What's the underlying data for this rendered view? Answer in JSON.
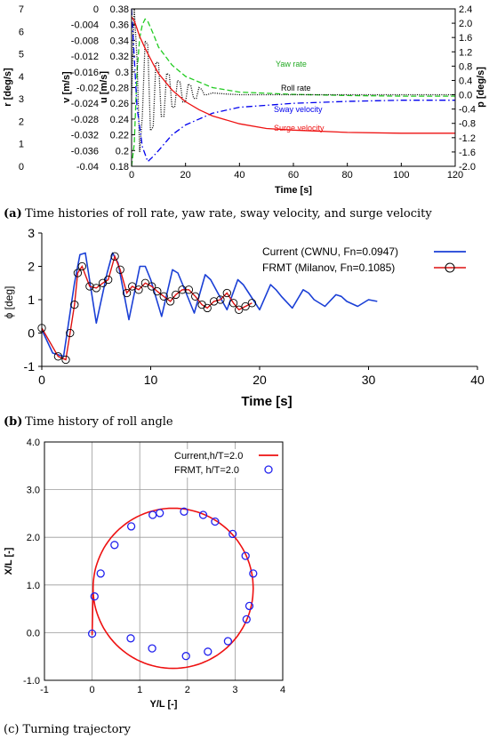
{
  "captions": {
    "a_letter": "(a)",
    "a_text": " Time histories of roll rate, yaw rate, sway velocity, and surge velocity",
    "b_letter": "(b)",
    "b_text": " Time history of roll angle",
    "c_text": "(c) Turning trajectory"
  },
  "colors": {
    "yaw": "#22cc22",
    "roll_rate": "#000000",
    "sway": "#0000ee",
    "surge": "#ee1111",
    "current_b": "#1a3fd6",
    "frmt_b": "#dd1111",
    "current_c": "#ee1111",
    "frmt_c": "#2222ee"
  },
  "chart_data": [
    {
      "type": "line",
      "xlabel": "Time [s]",
      "xlim": [
        0,
        120
      ],
      "xticks": [
        "0",
        "20",
        "40",
        "60",
        "80",
        "100",
        "120"
      ],
      "axes": {
        "r": {
          "label": "r [deg/s]",
          "lim": [
            0,
            7
          ],
          "ticks": [
            "0",
            "1",
            "2",
            "3",
            "4",
            "5",
            "6",
            "7"
          ]
        },
        "v": {
          "label": "v [m/s]",
          "lim": [
            -0.04,
            0
          ],
          "ticks": [
            "-0.04",
            "-0.036",
            "-0.032",
            "-0.028",
            "-0.024",
            "-0.02",
            "-0.016",
            "-0.012",
            "-0.008",
            "-0.004",
            "0"
          ]
        },
        "u": {
          "label": "u [m/s]",
          "lim": [
            0.18,
            0.38
          ],
          "ticks": [
            "0.18",
            "0.2",
            "0.22",
            "0.24",
            "0.26",
            "0.28",
            "0.3",
            "0.32",
            "0.34",
            "0.36",
            "0.38"
          ]
        },
        "p": {
          "label": "p [deg/s]",
          "lim": [
            -2.0,
            2.4
          ],
          "ticks": [
            "-2.0",
            "-1.6",
            "-1.2",
            "-0.8",
            "-0.4",
            "0.0",
            "0.4",
            "0.8",
            "1.2",
            "1.6",
            "2.0",
            "2.4"
          ]
        }
      },
      "series": [
        {
          "name": "Yaw rate",
          "axis": "r",
          "style": "dashed",
          "x": [
            0,
            1,
            2,
            3,
            4,
            5,
            6,
            8,
            10,
            15,
            20,
            30,
            40,
            60,
            80,
            100,
            120
          ],
          "y": [
            0,
            1.0,
            4.2,
            5.7,
            6.3,
            6.55,
            6.45,
            5.9,
            5.3,
            4.5,
            4.0,
            3.5,
            3.3,
            3.2,
            3.15,
            3.12,
            3.12
          ]
        },
        {
          "name": "Roll rate",
          "axis": "p",
          "style": "dotted",
          "x": [
            0,
            1,
            2,
            3,
            4,
            5,
            6,
            7,
            8,
            9,
            10,
            11,
            12,
            13,
            14,
            15,
            16,
            17,
            18,
            19,
            20,
            21,
            22,
            23,
            24,
            25,
            26,
            27,
            28,
            30,
            35,
            40,
            60,
            80,
            100,
            120
          ],
          "y": [
            0,
            2.4,
            1.0,
            -1.6,
            -0.6,
            1.5,
            1.4,
            -1.0,
            -0.9,
            0.9,
            0.9,
            -0.6,
            -0.6,
            0.6,
            0.55,
            -0.35,
            -0.35,
            0.4,
            0.35,
            -0.2,
            -0.2,
            0.3,
            0.25,
            -0.1,
            -0.1,
            0.2,
            0.15,
            0.0,
            0.0,
            0.05,
            0.02,
            0.0,
            0.0,
            0.0,
            0.0,
            0.0
          ]
        },
        {
          "name": "Sway velocity",
          "axis": "v",
          "style": "dashdot",
          "x": [
            0,
            2,
            4,
            6,
            8,
            10,
            15,
            20,
            30,
            40,
            60,
            80,
            100,
            120
          ],
          "y": [
            0,
            -0.025,
            -0.035,
            -0.0388,
            -0.0375,
            -0.036,
            -0.032,
            -0.0295,
            -0.0265,
            -0.025,
            -0.024,
            -0.0235,
            -0.0232,
            -0.0232
          ]
        },
        {
          "name": "Surge velocity",
          "axis": "u",
          "style": "solid",
          "x": [
            0,
            1,
            2,
            3,
            5,
            8,
            10,
            15,
            20,
            25,
            30,
            40,
            50,
            60,
            80,
            100,
            120
          ],
          "y": [
            0.37,
            0.365,
            0.355,
            0.345,
            0.33,
            0.31,
            0.298,
            0.277,
            0.262,
            0.252,
            0.244,
            0.234,
            0.228,
            0.226,
            0.223,
            0.222,
            0.222
          ]
        }
      ],
      "annotations": [
        "Yaw rate",
        "Roll rate",
        "Sway velocity",
        "Surge velocity"
      ]
    },
    {
      "type": "line",
      "xlabel": "Time [s]",
      "ylabel": "ϕ [deg]",
      "xlim": [
        0,
        40
      ],
      "ylim": [
        -1,
        3
      ],
      "xticks": [
        "0",
        "10",
        "20",
        "30",
        "40"
      ],
      "yticks": [
        "-1",
        "0",
        "1",
        "2",
        "3"
      ],
      "legend": "top-right",
      "series": [
        {
          "name": "Current (CWNU, Fn=0.0947)",
          "style": "solid",
          "x": [
            0,
            1,
            2,
            3,
            3.5,
            4,
            5,
            6,
            6.5,
            7,
            8,
            9,
            9.5,
            10,
            11,
            12,
            12.5,
            13,
            14,
            15,
            15.5,
            16,
            17,
            18,
            18.5,
            19,
            20,
            21,
            21.5,
            22,
            23,
            24,
            24.5,
            25,
            26,
            27,
            27.5,
            28,
            29,
            30,
            30.8
          ],
          "y": [
            0.1,
            -0.6,
            -0.7,
            1.5,
            2.35,
            2.4,
            0.3,
            1.8,
            2.4,
            2.1,
            0.4,
            2.0,
            2.0,
            1.6,
            0.5,
            1.9,
            1.8,
            1.4,
            0.6,
            1.75,
            1.6,
            1.3,
            0.7,
            1.6,
            1.45,
            1.2,
            0.7,
            1.45,
            1.3,
            1.1,
            0.75,
            1.3,
            1.2,
            1.0,
            0.8,
            1.15,
            1.1,
            0.95,
            0.8,
            1.0,
            0.95
          ]
        },
        {
          "name": "FRMT (Milanov, Fn=0.1085)",
          "style": "markers",
          "x": [
            0,
            1.5,
            2.2,
            2.6,
            3.0,
            3.3,
            3.7,
            4.4,
            5.0,
            5.6,
            6.1,
            6.7,
            7.2,
            7.8,
            8.3,
            8.9,
            9.5,
            10.1,
            10.6,
            11.2,
            11.8,
            12.3,
            12.9,
            13.5,
            14.1,
            14.7,
            15.2,
            15.8,
            16.4,
            17.0,
            17.6,
            18.1,
            18.7,
            19.3
          ],
          "y": [
            0.15,
            -0.7,
            -0.8,
            0.0,
            0.85,
            1.8,
            2.0,
            1.4,
            1.35,
            1.5,
            1.6,
            2.3,
            1.9,
            1.2,
            1.4,
            1.3,
            1.5,
            1.4,
            1.25,
            1.1,
            0.95,
            1.15,
            1.3,
            1.3,
            1.1,
            0.85,
            0.75,
            0.95,
            1.0,
            1.2,
            0.9,
            0.7,
            0.8,
            0.9
          ]
        }
      ]
    },
    {
      "type": "line",
      "xlabel": "Y/L [-]",
      "ylabel": "X/L [-]",
      "xlim": [
        -1,
        4
      ],
      "ylim": [
        -1,
        4
      ],
      "xticks": [
        "-1",
        "0",
        "1",
        "2",
        "3",
        "4"
      ],
      "yticks": [
        "-1.0",
        "0.0",
        "1.0",
        "2.0",
        "3.0",
        "4.0"
      ],
      "grid": true,
      "legend": "top-right",
      "series": [
        {
          "name": "Current,h/T=2.0",
          "style": "solid",
          "circle": {
            "cx": 1.7,
            "cy": 0.93,
            "r": 1.68
          },
          "start": [
            0.0,
            -0.05
          ]
        },
        {
          "name": "FRMT, h/T=2.0",
          "style": "markers",
          "x": [
            0.0,
            0.05,
            0.18,
            0.47,
            0.82,
            1.27,
            1.42,
            1.93,
            2.33,
            2.58,
            2.95,
            3.22,
            3.38,
            3.3,
            3.24,
            2.85,
            2.43,
            1.97,
            1.26,
            0.81
          ],
          "y": [
            -0.02,
            0.76,
            1.24,
            1.84,
            2.23,
            2.47,
            2.51,
            2.54,
            2.47,
            2.33,
            2.07,
            1.61,
            1.24,
            0.56,
            0.28,
            -0.18,
            -0.4,
            -0.49,
            -0.33,
            -0.12
          ]
        }
      ]
    }
  ]
}
